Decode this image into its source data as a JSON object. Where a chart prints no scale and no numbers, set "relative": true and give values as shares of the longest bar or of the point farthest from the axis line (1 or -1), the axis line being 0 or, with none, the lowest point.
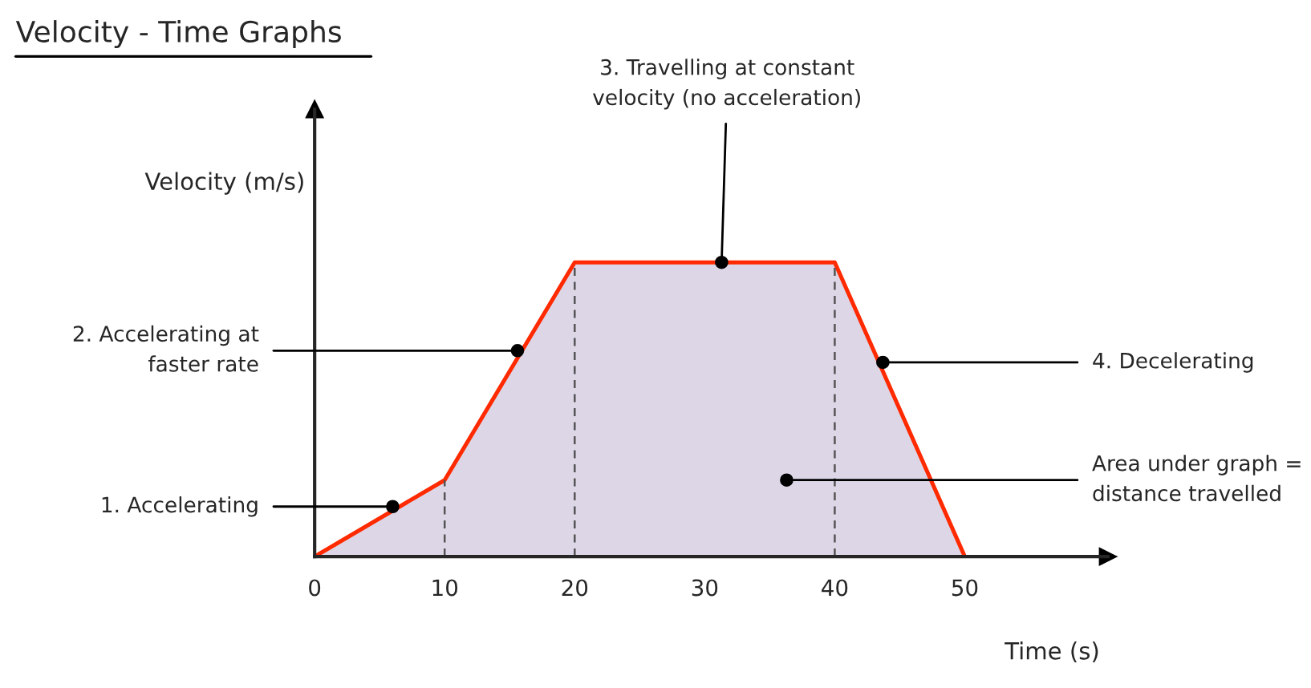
{
  "chart_data": {
    "type": "area",
    "title": "Velocity - Time Graphs",
    "xlabel": "Time (s)",
    "ylabel": "Velocity (m/s)",
    "x": [
      0,
      10,
      20,
      40,
      50
    ],
    "values": [
      0,
      0.26,
      1,
      1,
      0
    ],
    "relative": true,
    "color": "#ff2a00",
    "xlim": [
      0,
      61
    ],
    "xticks": [
      0,
      10,
      20,
      30,
      40,
      50
    ],
    "tick_labels": "x",
    "grid": false,
    "legend": false,
    "ref_lines": [
      {
        "axis": "x",
        "value": 10,
        "line_style": "dashed",
        "color": "#555555"
      },
      {
        "axis": "x",
        "value": 20,
        "line_style": "dashed",
        "color": "#555555"
      },
      {
        "axis": "x",
        "value": 40,
        "line_style": "dashed",
        "color": "#555555"
      }
    ],
    "annotations": [
      {
        "text": "1. Accelerating",
        "x": 6,
        "y": 0.17
      },
      {
        "text": "2. Accelerating at\nfaster rate",
        "x": 15.6,
        "y": 0.7
      },
      {
        "text": "3. Travelling at constant\nvelocity (no acceleration)",
        "x": 31.3,
        "y": 1
      },
      {
        "text": "4. Decelerating",
        "x": 43.7,
        "y": 0.66
      },
      {
        "text": "Area under graph =\ndistance travelled",
        "x": 36.3,
        "y": 0.26
      }
    ]
  }
}
